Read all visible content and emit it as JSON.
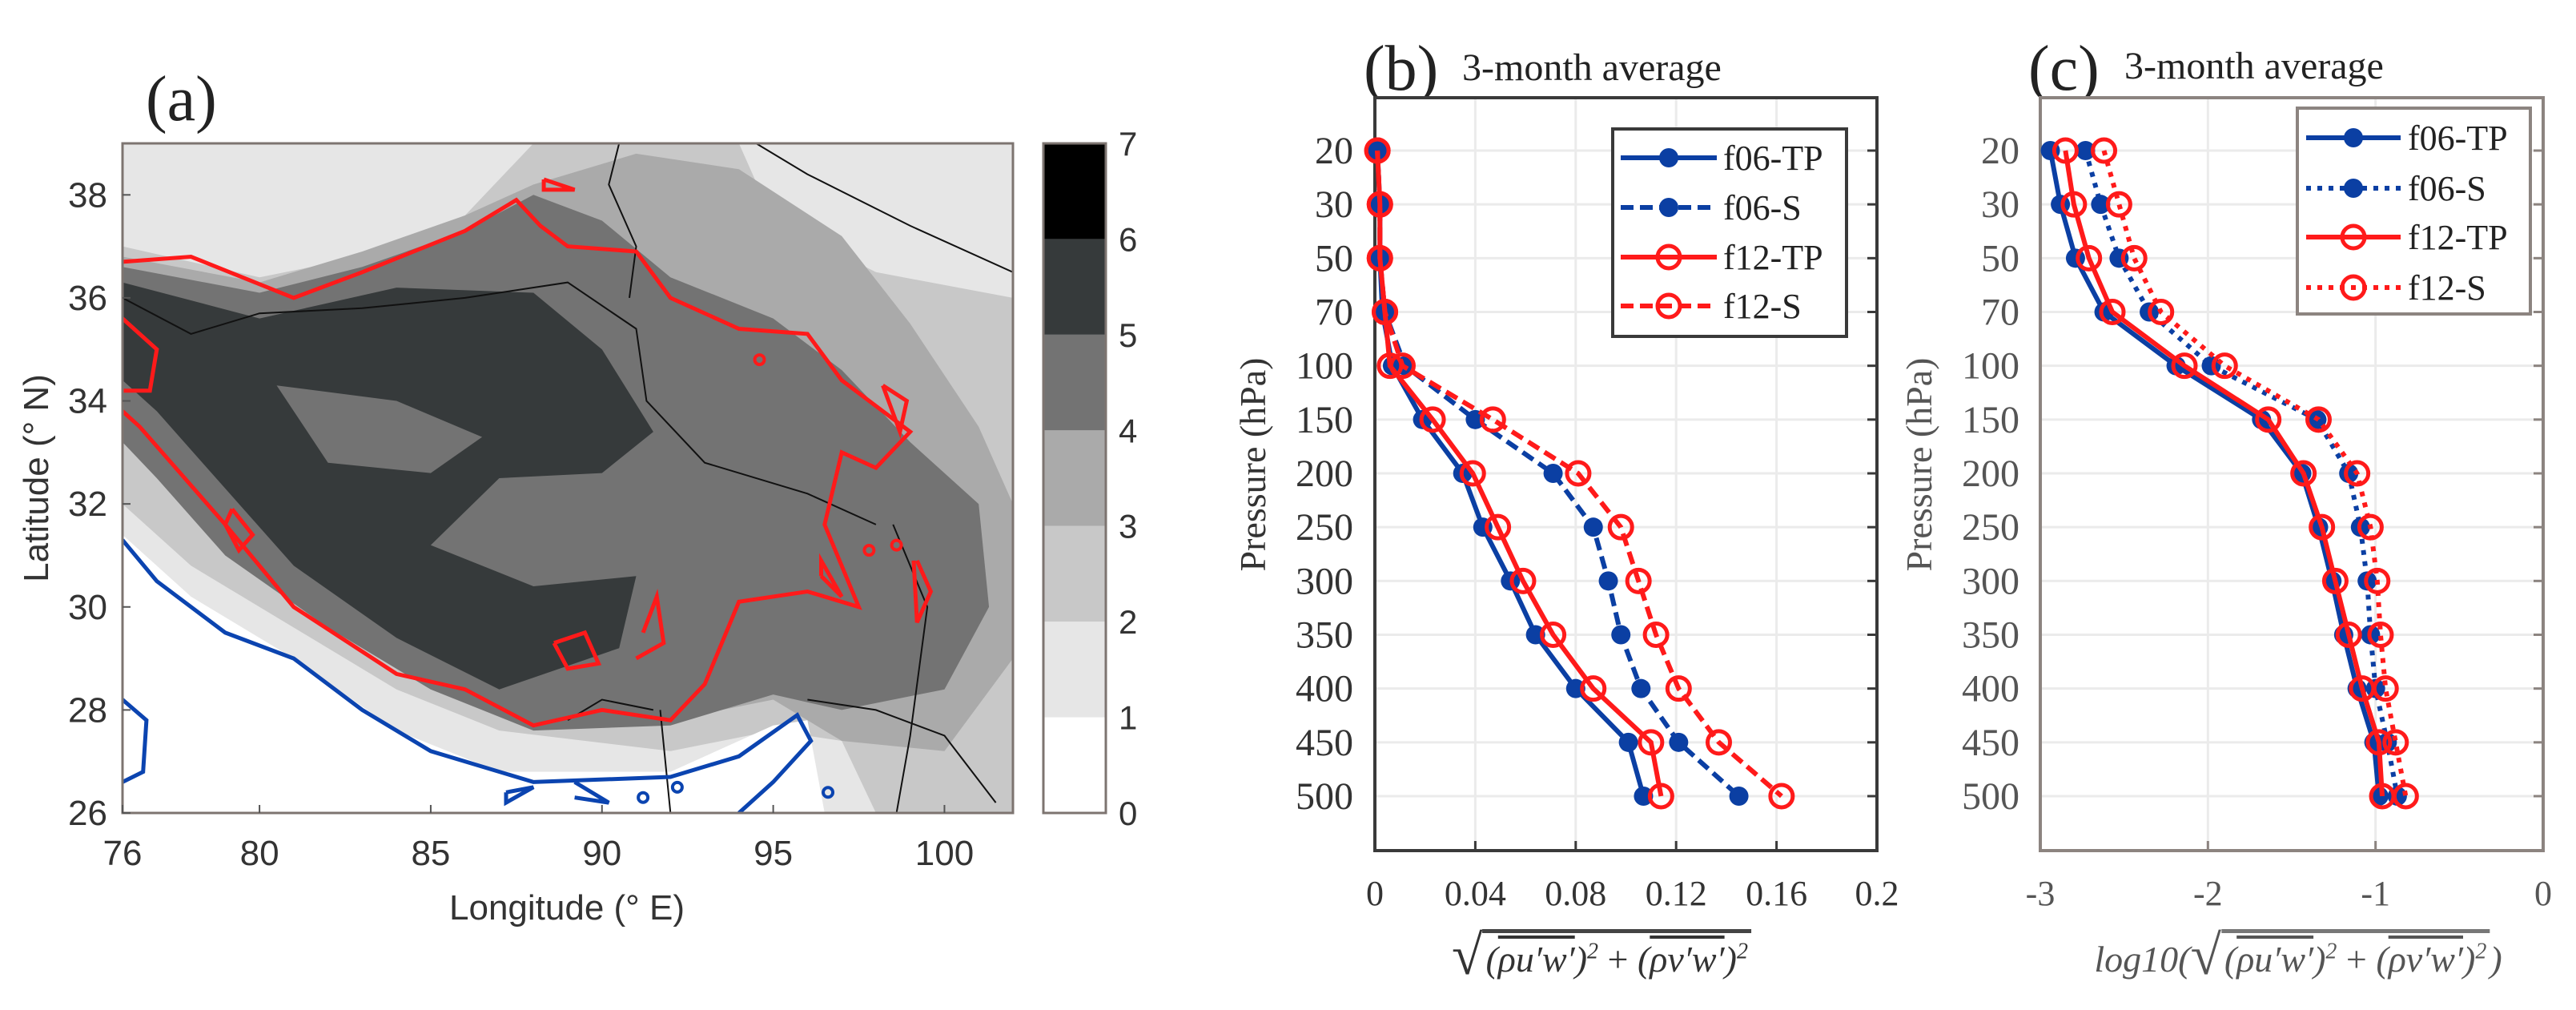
{
  "colors": {
    "f06": "#0b3fa3",
    "f12": "#ff1a1a",
    "contour_red": "#ff1a1a",
    "contour_blue": "#0b44b0"
  },
  "chart_data": [
    {
      "type": "heatmap",
      "title": "(a)",
      "xlabel": "Longitude (° E)",
      "ylabel": "Latitude (° N)",
      "xlim": [
        76,
        102
      ],
      "ylim": [
        26,
        39
      ],
      "xticks": [
        "76",
        "80",
        "85",
        "90",
        "95",
        "100"
      ],
      "xtick_values": [
        76,
        80,
        85,
        90,
        95,
        100
      ],
      "yticks": [
        "26",
        "28",
        "30",
        "32",
        "34",
        "36",
        "38"
      ],
      "ytick_values": [
        26,
        28,
        30,
        32,
        34,
        36,
        38
      ],
      "colorbar": {
        "ticks": [
          "0",
          "1",
          "2",
          "3",
          "4",
          "5",
          "6",
          "7"
        ],
        "levels": [
          "#ffffff",
          "#e6e6e6",
          "#c8c8c8",
          "#aaaaaa",
          "#737373",
          "#363a3b",
          "#000000"
        ]
      }
    },
    {
      "type": "line",
      "title": "(b)",
      "subtitle": "3-month average",
      "ylabel": "Pressure (hPa)",
      "xlabel_terms": [
        "ρu′w′",
        "ρv′w′"
      ],
      "xlabel_plus": "+",
      "xlabel_exp": "2",
      "xlim": [
        0,
        0.2
      ],
      "xtick_values": [
        0,
        0.04,
        0.08,
        0.12,
        0.16,
        0.2
      ],
      "xticks": [
        "0",
        "0.04",
        "0.08",
        "0.12",
        "0.16",
        "0.2"
      ],
      "categories": [
        "20",
        "30",
        "50",
        "70",
        "100",
        "150",
        "200",
        "250",
        "300",
        "350",
        "400",
        "450",
        "500"
      ],
      "legend_position": "top-right",
      "series": [
        {
          "name": "f06-TP",
          "style": "solid",
          "marker": "filled",
          "color": "#0b3fa3",
          "values": [
            0.001,
            0.002,
            0.002,
            0.003,
            0.007,
            0.019,
            0.035,
            0.043,
            0.054,
            0.064,
            0.08,
            0.101,
            0.107
          ]
        },
        {
          "name": "f06-S",
          "style": "dashed",
          "marker": "filled",
          "color": "#0b3fa3",
          "values": [
            0.001,
            0.002,
            0.002,
            0.004,
            0.012,
            0.04,
            0.071,
            0.087,
            0.093,
            0.098,
            0.106,
            0.121,
            0.145
          ]
        },
        {
          "name": "f12-TP",
          "style": "solid",
          "marker": "open",
          "color": "#ff1a1a",
          "values": [
            0.001,
            0.002,
            0.002,
            0.004,
            0.006,
            0.023,
            0.039,
            0.049,
            0.059,
            0.071,
            0.087,
            0.11,
            0.114
          ]
        },
        {
          "name": "f12-S",
          "style": "dashed",
          "marker": "open",
          "color": "#ff1a1a",
          "values": [
            0.001,
            0.002,
            0.002,
            0.004,
            0.011,
            0.047,
            0.081,
            0.098,
            0.105,
            0.112,
            0.121,
            0.137,
            0.162
          ]
        }
      ]
    },
    {
      "type": "line",
      "title": "(c)",
      "subtitle": "3-month average",
      "ylabel": "Pressure (hPa)",
      "xlabel_prefix": "log10(",
      "xlabel_suffix": ")",
      "xlabel_terms": [
        "ρu′w′",
        "ρv′w′"
      ],
      "xlabel_plus": "+",
      "xlabel_exp": "2",
      "xlim": [
        -3,
        0
      ],
      "xtick_values": [
        -3,
        -2,
        -1,
        0
      ],
      "xticks": [
        "-3",
        "-2",
        "-1",
        "0"
      ],
      "categories": [
        "20",
        "30",
        "50",
        "70",
        "100",
        "150",
        "200",
        "250",
        "300",
        "350",
        "400",
        "450",
        "500"
      ],
      "legend_position": "top-right",
      "series": [
        {
          "name": "f06-TP",
          "style": "solid",
          "marker": "filled",
          "color": "#0b3fa3",
          "values": [
            -2.94,
            -2.88,
            -2.79,
            -2.62,
            -2.19,
            -1.68,
            -1.44,
            -1.34,
            -1.26,
            -1.19,
            -1.11,
            -1.01,
            -0.98
          ]
        },
        {
          "name": "f06-S",
          "style": "dotted",
          "marker": "filled",
          "color": "#0b3fa3",
          "values": [
            -2.73,
            -2.64,
            -2.53,
            -2.35,
            -1.98,
            -1.35,
            -1.16,
            -1.09,
            -1.05,
            -1.03,
            -1.0,
            -0.93,
            -0.87
          ]
        },
        {
          "name": "f12-TP",
          "style": "solid",
          "marker": "open",
          "color": "#ff1a1a",
          "values": [
            -2.85,
            -2.8,
            -2.71,
            -2.57,
            -2.14,
            -1.64,
            -1.43,
            -1.32,
            -1.24,
            -1.16,
            -1.08,
            -0.98,
            -0.96
          ]
        },
        {
          "name": "f12-S",
          "style": "dotted",
          "marker": "open",
          "color": "#ff1a1a",
          "values": [
            -2.62,
            -2.53,
            -2.44,
            -2.28,
            -1.9,
            -1.34,
            -1.11,
            -1.03,
            -0.99,
            -0.97,
            -0.94,
            -0.88,
            -0.82
          ]
        }
      ]
    }
  ]
}
